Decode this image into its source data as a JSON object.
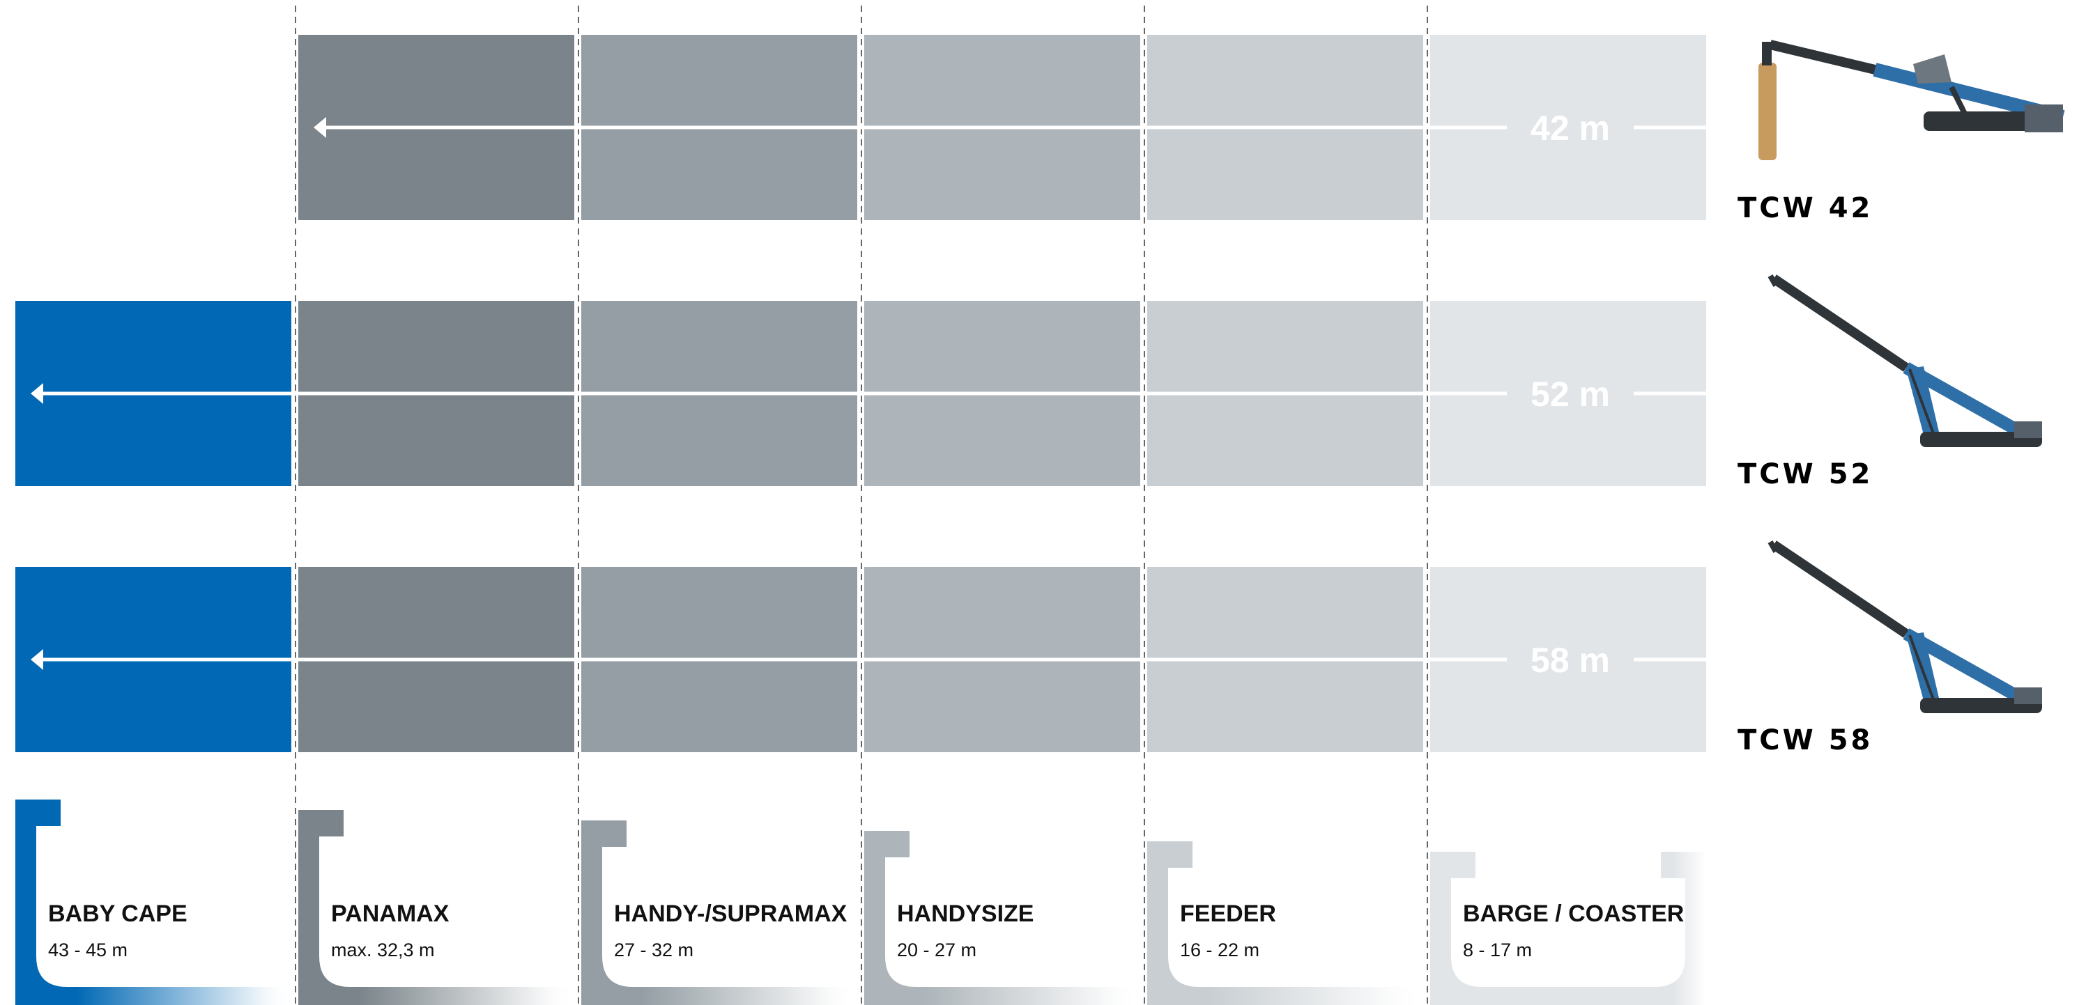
{
  "columns": [
    {
      "key": "baby_cape",
      "name": "BABY CAPE",
      "range": "43 - 45 m",
      "color": "#0068b4"
    },
    {
      "key": "panamax",
      "name": "PANAMAX",
      "range": "max. 32,3 m",
      "color": "#7a848a"
    },
    {
      "key": "handy_supramax",
      "name": "HANDY-/SUPRAMAX",
      "range": "27 - 32 m",
      "color": "#949ea4"
    },
    {
      "key": "handysize",
      "name": "HANDYSIZE",
      "range": "20 - 27 m",
      "color": "#adb5ba"
    },
    {
      "key": "feeder",
      "name": "FEEDER",
      "range": "16 - 22 m",
      "color": "#c8ced2"
    },
    {
      "key": "barge_coaster",
      "name": "BARGE / COASTER",
      "range": "8 - 17 m",
      "color": "#e2e5e8"
    }
  ],
  "rows": [
    {
      "model": "TCW 42",
      "reach_label": "42 m",
      "reach_to_column": 1
    },
    {
      "model": "TCW 52",
      "reach_label": "52 m",
      "reach_to_column": 0
    },
    {
      "model": "TCW 58",
      "reach_label": "58 m",
      "reach_to_column": 0
    }
  ],
  "colors": {
    "arrow": "#ffffff",
    "divider": "#666666",
    "boom_dark": "#2e3438",
    "boom_blue": "#2f6fa8",
    "support": "#c79a5e"
  },
  "icons": {
    "stacker": "telescopic-ship-loader-icon",
    "arrow": "arrow-left-icon"
  }
}
